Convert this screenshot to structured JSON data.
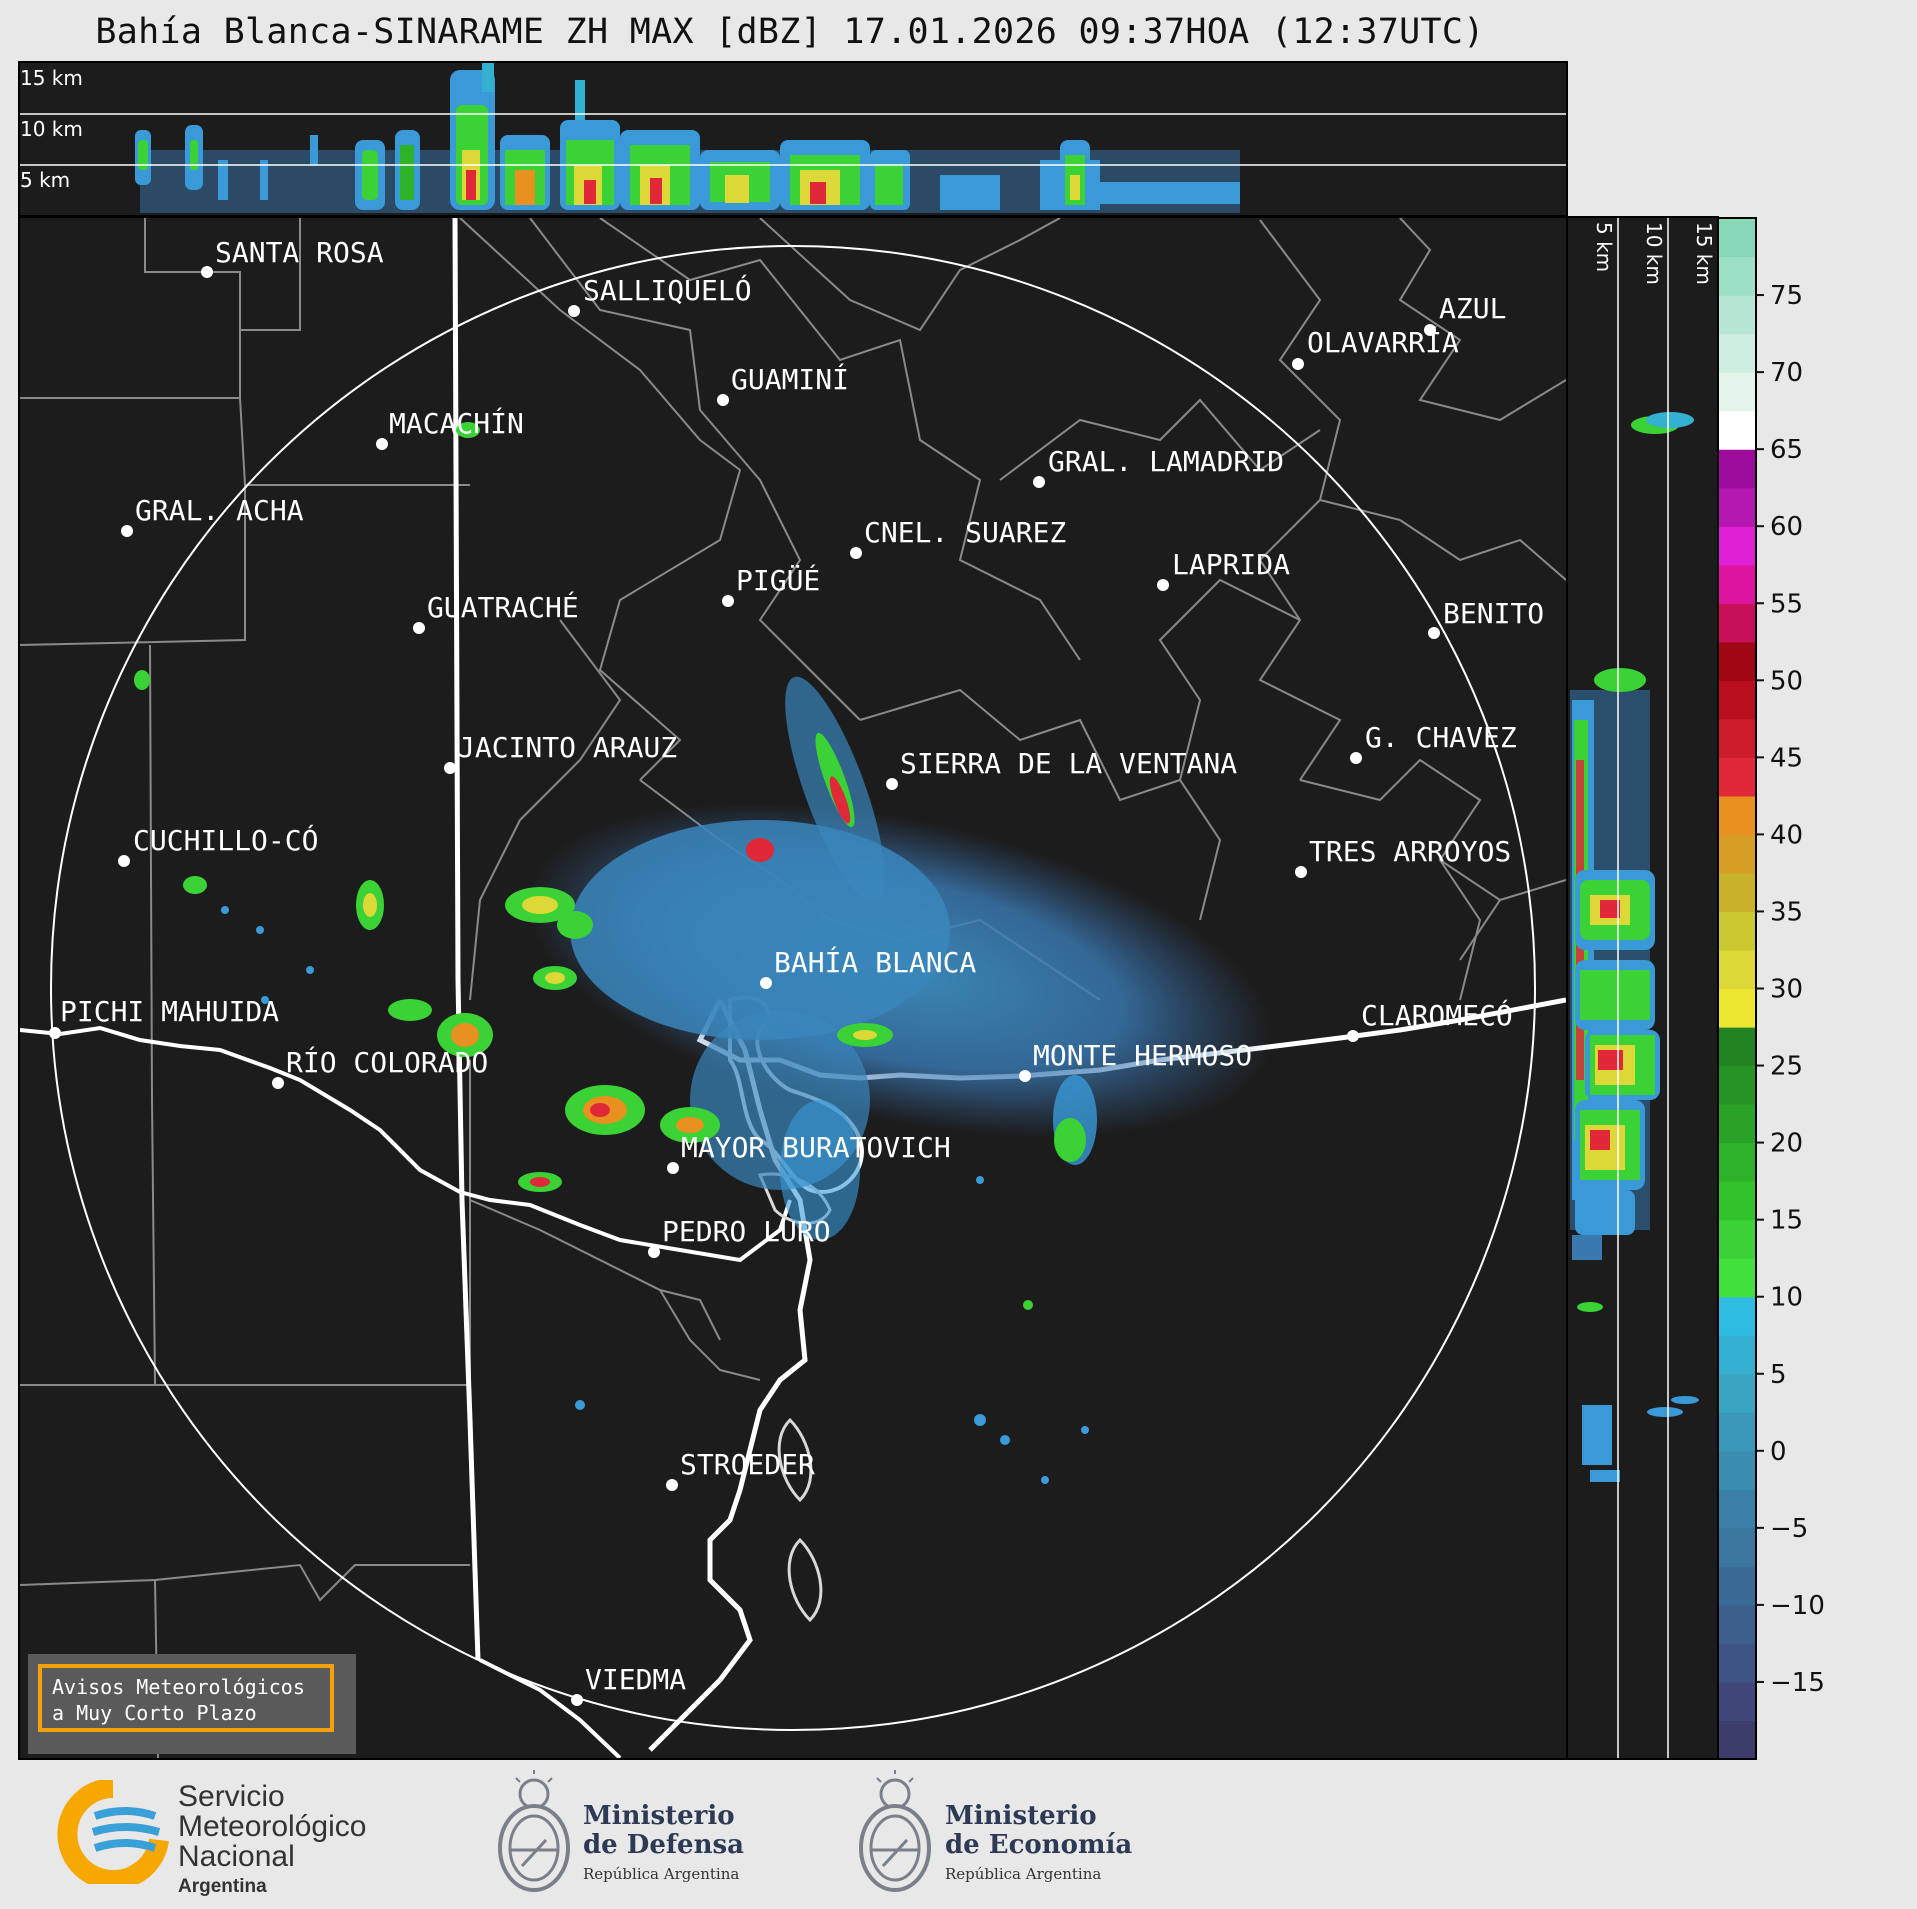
{
  "title": "Bahía Blanca-SINARAME ZH MAX [dBZ] 17.01.2026 09:37HOA (12:37UTC)",
  "top_panel": {
    "height_labels": [
      "15 km",
      "10 km",
      "5 km"
    ]
  },
  "side_panel": {
    "height_labels": [
      "5 km",
      "10 km",
      "15 km"
    ]
  },
  "cities": [
    {
      "name": "SANTA ROSA"
    },
    {
      "name": "SALLIQUELÓ"
    },
    {
      "name": "GUAMINÍ"
    },
    {
      "name": "AZUL"
    },
    {
      "name": "OLAVARRÍA"
    },
    {
      "name": "MACACHÍN"
    },
    {
      "name": "GRAL. LAMADRID"
    },
    {
      "name": "GRAL. ACHA"
    },
    {
      "name": "CNEL. SUAREZ"
    },
    {
      "name": "LAPRIDA"
    },
    {
      "name": "PIGÜÉ"
    },
    {
      "name": "GUATRACHÉ"
    },
    {
      "name": "BENITO"
    },
    {
      "name": "G. CHAVEZ"
    },
    {
      "name": "JACINTO ARAUZ"
    },
    {
      "name": "SIERRA DE LA VENTANA"
    },
    {
      "name": "CUCHILLO-CÓ"
    },
    {
      "name": "TRES ARROYOS"
    },
    {
      "name": "BAHÍA BLANCA"
    },
    {
      "name": "PICHI MAHUIDA"
    },
    {
      "name": "CLAROMECÓ"
    },
    {
      "name": "MONTE HERMOSO"
    },
    {
      "name": "RÍO COLORADO"
    },
    {
      "name": "MAYOR BURATOVICH"
    },
    {
      "name": "PEDRO LURO"
    },
    {
      "name": "STROEDER"
    },
    {
      "name": "VIEDMA"
    }
  ],
  "colorbar": {
    "ticks": [
      "75",
      "70",
      "65",
      "60",
      "55",
      "50",
      "45",
      "40",
      "35",
      "30",
      "25",
      "20",
      "15",
      "10",
      "5",
      "0",
      "−5",
      "−10",
      "−15"
    ],
    "segments": [
      "#3c3d6a",
      "#40487a",
      "#3e5484",
      "#3c5f8c",
      "#3a6a96",
      "#3a769e",
      "#3a80a6",
      "#3b8db0",
      "#3a98b8",
      "#3aa4c2",
      "#34b0d0",
      "#2ebde0",
      "#42e03c",
      "#3ad234",
      "#32c22c",
      "#2eb22a",
      "#2aa227",
      "#279225",
      "#238222",
      "#ece832",
      "#dcd838",
      "#ccc832",
      "#c8b22a",
      "#d69e24",
      "#e89020",
      "#e02838",
      "#cc1c2c",
      "#b80e1e",
      "#a00614",
      "#c8105a",
      "#dc14a0",
      "#e020d4",
      "#b418b0",
      "#9c0c9a",
      "#ffffff",
      "#e4f6ea",
      "#cdeee0",
      "#b6e6d4",
      "#9ee0c6",
      "#88d8b8"
    ],
    "segment_min_dbz": -20,
    "segment_step_dbz": 2.5
  },
  "warning": {
    "line1": "Avisos Meteorológicos",
    "line2": "a Muy Corto Plazo",
    "border_color": "#f2a10a"
  },
  "logos": {
    "smn": {
      "line1": "Servicio",
      "line2": "Meteorológico",
      "line3": "Nacional",
      "line4": "Argentina"
    },
    "defensa": {
      "line1": "Ministerio",
      "line2": "de Defensa",
      "line3": "República Argentina"
    },
    "economia": {
      "line1": "Ministerio",
      "line2": "de Economía",
      "line3": "República Argentina"
    }
  },
  "colors": {
    "map_background": "#1c1c1c",
    "borders": "#8a8a8a",
    "coast": "#ffffff",
    "smn_orange": "#f6a800",
    "smn_blue": "#3aa0d8"
  }
}
